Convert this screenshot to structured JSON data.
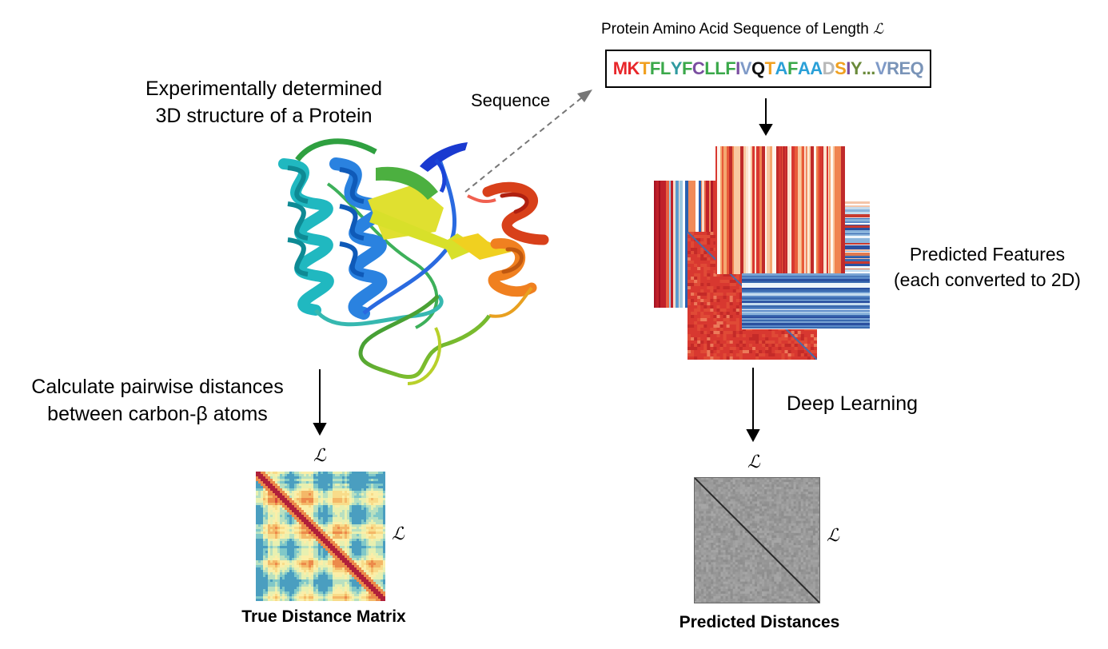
{
  "labels": {
    "structure_title_line1": "Experimentally determined",
    "structure_title_line2": "3D structure of a Protein",
    "sequence_arrow_label": "Sequence",
    "sequence_header": "Protein Amino Acid Sequence of Length",
    "length_symbol": "ℒ",
    "features_line1": "Predicted Features",
    "features_line2": "(each converted to 2D)",
    "pairwise_line1": "Calculate pairwise distances",
    "pairwise_line2": "between carbon-β atoms",
    "deep_learning": "Deep Learning",
    "true_matrix_caption": "True Distance Matrix",
    "predicted_caption": "Predicted Distances"
  },
  "sequence": {
    "residues": [
      {
        "c": "M",
        "color": "#e8262a"
      },
      {
        "c": "K",
        "color": "#e8262a"
      },
      {
        "c": "T",
        "color": "#f0a020"
      },
      {
        "c": "F",
        "color": "#3aa84a"
      },
      {
        "c": "L",
        "color": "#3aa84a"
      },
      {
        "c": "Y",
        "color": "#2f9aa0"
      },
      {
        "c": "F",
        "color": "#3aa84a"
      },
      {
        "c": "C",
        "color": "#7a4ea0"
      },
      {
        "c": "L",
        "color": "#3aa84a"
      },
      {
        "c": "L",
        "color": "#3aa84a"
      },
      {
        "c": "F",
        "color": "#3aa84a"
      },
      {
        "c": "I",
        "color": "#7a4ea0"
      },
      {
        "c": "V",
        "color": "#7f9ac8"
      },
      {
        "c": "Q",
        "color": "#111111"
      },
      {
        "c": "T",
        "color": "#f0a020"
      },
      {
        "c": "A",
        "color": "#2aa0d8"
      },
      {
        "c": "F",
        "color": "#3aa84a"
      },
      {
        "c": "A",
        "color": "#2aa0d8"
      },
      {
        "c": "A",
        "color": "#2aa0d8"
      },
      {
        "c": "D",
        "color": "#b8b8b8"
      },
      {
        "c": "S",
        "color": "#f0a020"
      },
      {
        "c": "I",
        "color": "#7a4ea0"
      },
      {
        "c": "Y",
        "color": "#6a8a3a"
      },
      {
        "c": "...",
        "color": "#6a8a3a"
      },
      {
        "c": "V",
        "color": "#7f9ac8"
      },
      {
        "c": "R",
        "color": "#7a94b8"
      },
      {
        "c": "E",
        "color": "#7a94b8"
      },
      {
        "c": "Q",
        "color": "#7a94b8"
      }
    ]
  }
}
